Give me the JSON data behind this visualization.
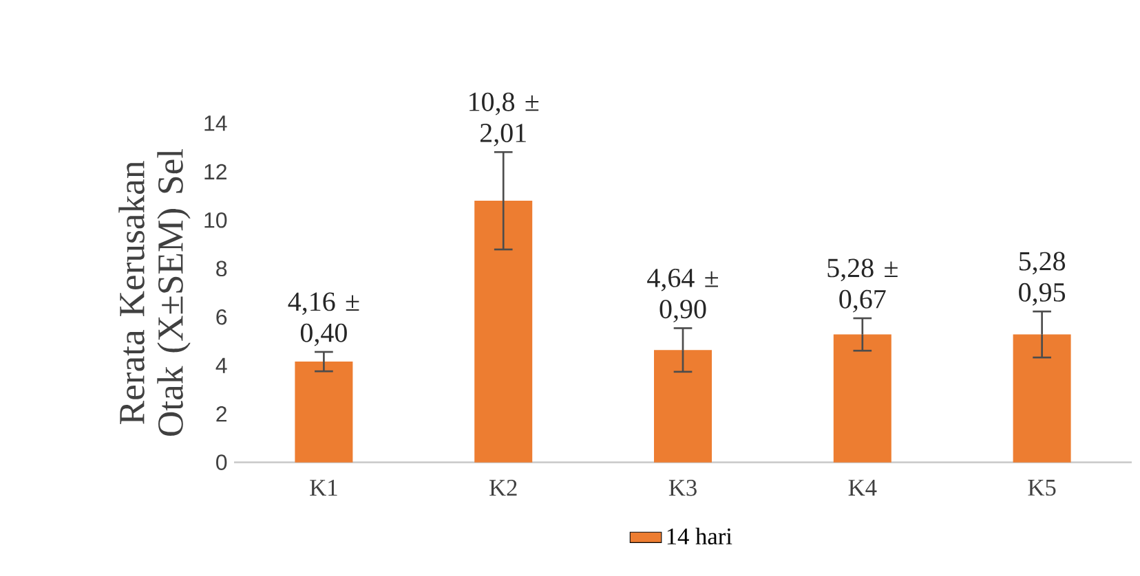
{
  "chart_data": {
    "type": "bar",
    "ylabel": "Rerata Kerusakan Otak (X±SEM) Sel",
    "categories": [
      "K1",
      "K2",
      "K3",
      "K4",
      "K5"
    ],
    "series": [
      {
        "name": "14 hari",
        "color": "#ed7d31",
        "values": [
          4.16,
          10.8,
          4.64,
          5.28,
          5.28
        ],
        "errors": [
          0.4,
          2.01,
          0.9,
          0.67,
          0.95
        ],
        "value_labels": [
          "4,16 ± 0,40",
          "10,8 ± 2,01",
          "4,64 ± 0,90",
          "5,28 ± 0,67",
          "5,28 0,95"
        ]
      }
    ],
    "ylim": [
      0,
      14
    ],
    "yticks": [
      0,
      2,
      4,
      6,
      8,
      10,
      12,
      14
    ],
    "grid": false,
    "legend": "bottom"
  }
}
